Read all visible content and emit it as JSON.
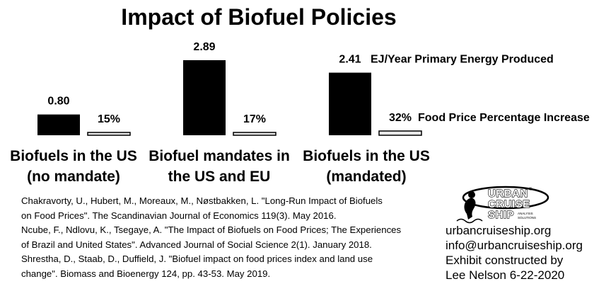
{
  "chart_data": {
    "type": "bar",
    "title": "Impact of Biofuel Policies",
    "categories": [
      [
        "Biofuels in the US",
        "(no mandate)"
      ],
      [
        "Biofuel mandates in",
        "the US and EU"
      ],
      [
        "Biofuels in the US",
        "(mandated)"
      ]
    ],
    "series": [
      {
        "name": "EJ/Year Primary Energy Produced",
        "values": [
          0.8,
          2.89,
          2.41
        ],
        "labels": [
          "0.80",
          "2.89",
          "2.41"
        ],
        "color": "#000000"
      },
      {
        "name": "Food Price Percentage Increase",
        "values": [
          15,
          17,
          32
        ],
        "labels": [
          "15%",
          "17%",
          "32%"
        ],
        "color": "#e8e8e8"
      }
    ],
    "grid": false,
    "legend_placement": "inline-right"
  },
  "references": [
    [
      "Chakravorty, U., Hubert, M., Moreaux, M., Nøstbakken, L. \"Long-Run Impact of Biofuels",
      "on Food Prices\". The Scandinavian Journal of Economics 119(3). May 2016."
    ],
    [
      "Ncube, F., Ndlovu, K., Tsegaye, A. \"The Impact of Biofuels on Food Prices; The Experiences",
      "of Brazil and United States\". Advanced Journal of Social Science 2(1). January 2018."
    ],
    [
      "Shrestha, D., Staab, D., Duffield, J. \"Biofuel impact on food prices index and land use",
      "change\". Biomass and Bioenergy 124, pp. 43-53. May 2019."
    ]
  ],
  "logo": {
    "line1": "URBAN",
    "line2": "CRUISE",
    "line3": "SHIP",
    "registered": "®",
    "tagline1": "ANALYSIS",
    "tagline2": "SOLUTIONS"
  },
  "contact": {
    "website": "urbancruiseship.org",
    "email": "info@urbancruiseship.org",
    "credit1": "Exhibit constructed by",
    "credit2": "Lee Nelson 6-22-2020"
  }
}
